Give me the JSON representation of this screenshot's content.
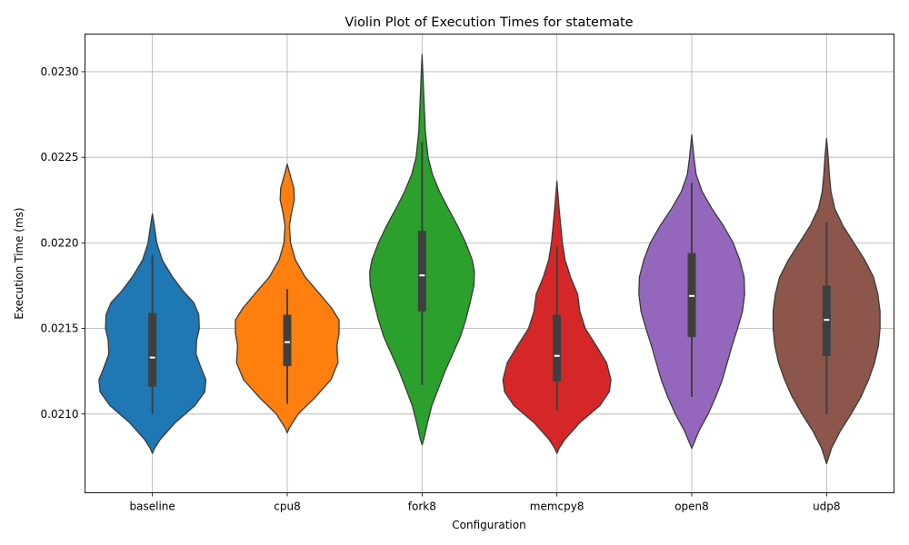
{
  "chart_data": {
    "type": "violin",
    "title": "Violin Plot of Execution Times for statemate",
    "xlabel": "Configuration",
    "ylabel": "Execution Time (ms)",
    "ylim": [
      0.02054,
      0.02322
    ],
    "grid": true,
    "y_ticks": [
      "0.0210",
      "0.0215",
      "0.0220",
      "0.0225",
      "0.0230"
    ],
    "categories": [
      "baseline",
      "cpu8",
      "fork8",
      "memcpy8",
      "open8",
      "udp8"
    ],
    "series": [
      {
        "category": "baseline",
        "color": "#1f77b4",
        "whisker": [
          0.021,
          0.02193
        ],
        "q1": 0.02116,
        "median": 0.02133,
        "q3": 0.02159,
        "density": [
          [
            0.02077,
            0.0
          ],
          [
            0.0208,
            0.04
          ],
          [
            0.02085,
            0.14
          ],
          [
            0.02095,
            0.42
          ],
          [
            0.02105,
            0.78
          ],
          [
            0.02113,
            0.96
          ],
          [
            0.0212,
            0.98
          ],
          [
            0.02128,
            0.88
          ],
          [
            0.02135,
            0.8
          ],
          [
            0.02143,
            0.81
          ],
          [
            0.0215,
            0.86
          ],
          [
            0.02158,
            0.85
          ],
          [
            0.02165,
            0.76
          ],
          [
            0.02172,
            0.56
          ],
          [
            0.0218,
            0.37
          ],
          [
            0.0219,
            0.18
          ],
          [
            0.022,
            0.08
          ],
          [
            0.0221,
            0.035
          ],
          [
            0.02217,
            0.0
          ]
        ]
      },
      {
        "category": "cpu8",
        "color": "#ff7f0e",
        "whisker": [
          0.02106,
          0.02173
        ],
        "q1": 0.02128,
        "median": 0.02142,
        "q3": 0.02158,
        "density": [
          [
            0.02089,
            0.0
          ],
          [
            0.02092,
            0.04
          ],
          [
            0.021,
            0.2
          ],
          [
            0.0211,
            0.52
          ],
          [
            0.0212,
            0.8
          ],
          [
            0.0213,
            0.93
          ],
          [
            0.0214,
            0.91
          ],
          [
            0.02147,
            0.95
          ],
          [
            0.02155,
            0.95
          ],
          [
            0.02162,
            0.81
          ],
          [
            0.0217,
            0.6
          ],
          [
            0.0218,
            0.33
          ],
          [
            0.0219,
            0.15
          ],
          [
            0.022,
            0.06
          ],
          [
            0.0221,
            0.04
          ],
          [
            0.02218,
            0.08
          ],
          [
            0.02225,
            0.13
          ],
          [
            0.02232,
            0.12
          ],
          [
            0.0224,
            0.05
          ],
          [
            0.02246,
            0.0
          ]
        ]
      },
      {
        "category": "fork8",
        "color": "#2ca02c",
        "whisker": [
          0.02117,
          0.02259
        ],
        "q1": 0.0216,
        "median": 0.02181,
        "q3": 0.02207,
        "density": [
          [
            0.02082,
            0.0
          ],
          [
            0.02085,
            0.03
          ],
          [
            0.02095,
            0.1
          ],
          [
            0.02105,
            0.18
          ],
          [
            0.02115,
            0.3
          ],
          [
            0.02125,
            0.42
          ],
          [
            0.02135,
            0.56
          ],
          [
            0.02145,
            0.7
          ],
          [
            0.02155,
            0.8
          ],
          [
            0.02165,
            0.88
          ],
          [
            0.02175,
            0.95
          ],
          [
            0.02183,
            0.96
          ],
          [
            0.0219,
            0.92
          ],
          [
            0.022,
            0.8
          ],
          [
            0.0221,
            0.65
          ],
          [
            0.0222,
            0.48
          ],
          [
            0.0223,
            0.32
          ],
          [
            0.0224,
            0.19
          ],
          [
            0.0225,
            0.11
          ],
          [
            0.02265,
            0.06
          ],
          [
            0.0228,
            0.04
          ],
          [
            0.02295,
            0.02
          ],
          [
            0.0231,
            0.0
          ]
        ]
      },
      {
        "category": "memcpy8",
        "color": "#d62728",
        "whisker": [
          0.02102,
          0.02198
        ],
        "q1": 0.02119,
        "median": 0.02134,
        "q3": 0.02158,
        "density": [
          [
            0.02077,
            0.0
          ],
          [
            0.0208,
            0.04
          ],
          [
            0.02085,
            0.14
          ],
          [
            0.02095,
            0.42
          ],
          [
            0.02105,
            0.79
          ],
          [
            0.02113,
            0.96
          ],
          [
            0.0212,
            0.99
          ],
          [
            0.0213,
            0.91
          ],
          [
            0.0214,
            0.72
          ],
          [
            0.0215,
            0.52
          ],
          [
            0.0216,
            0.42
          ],
          [
            0.0217,
            0.38
          ],
          [
            0.0218,
            0.25
          ],
          [
            0.0219,
            0.15
          ],
          [
            0.022,
            0.1
          ],
          [
            0.0221,
            0.07
          ],
          [
            0.0222,
            0.04
          ],
          [
            0.02236,
            0.0
          ]
        ]
      },
      {
        "category": "open8",
        "color": "#9467bd",
        "whisker": [
          0.0211,
          0.02235
        ],
        "q1": 0.02145,
        "median": 0.02169,
        "q3": 0.02194,
        "density": [
          [
            0.0208,
            0.0
          ],
          [
            0.02083,
            0.04
          ],
          [
            0.0209,
            0.13
          ],
          [
            0.021,
            0.3
          ],
          [
            0.0211,
            0.44
          ],
          [
            0.0212,
            0.56
          ],
          [
            0.0213,
            0.65
          ],
          [
            0.0214,
            0.74
          ],
          [
            0.0215,
            0.84
          ],
          [
            0.0216,
            0.93
          ],
          [
            0.0217,
            0.97
          ],
          [
            0.0218,
            0.96
          ],
          [
            0.0219,
            0.88
          ],
          [
            0.022,
            0.76
          ],
          [
            0.0221,
            0.58
          ],
          [
            0.0222,
            0.37
          ],
          [
            0.0223,
            0.19
          ],
          [
            0.0224,
            0.08
          ],
          [
            0.0225,
            0.04
          ],
          [
            0.02263,
            0.0
          ]
        ]
      },
      {
        "category": "udp8",
        "color": "#8c564b",
        "whisker": [
          0.021,
          0.02212
        ],
        "q1": 0.02134,
        "median": 0.02155,
        "q3": 0.02175,
        "density": [
          [
            0.02071,
            0.0
          ],
          [
            0.02075,
            0.04
          ],
          [
            0.0208,
            0.09
          ],
          [
            0.0209,
            0.25
          ],
          [
            0.021,
            0.45
          ],
          [
            0.0211,
            0.63
          ],
          [
            0.0212,
            0.77
          ],
          [
            0.0213,
            0.88
          ],
          [
            0.0214,
            0.95
          ],
          [
            0.0215,
            0.98
          ],
          [
            0.0216,
            0.98
          ],
          [
            0.0217,
            0.94
          ],
          [
            0.0218,
            0.86
          ],
          [
            0.0219,
            0.7
          ],
          [
            0.022,
            0.5
          ],
          [
            0.0221,
            0.3
          ],
          [
            0.0222,
            0.15
          ],
          [
            0.0223,
            0.08
          ],
          [
            0.0224,
            0.05
          ],
          [
            0.0225,
            0.03
          ],
          [
            0.02261,
            0.0
          ]
        ]
      }
    ]
  }
}
